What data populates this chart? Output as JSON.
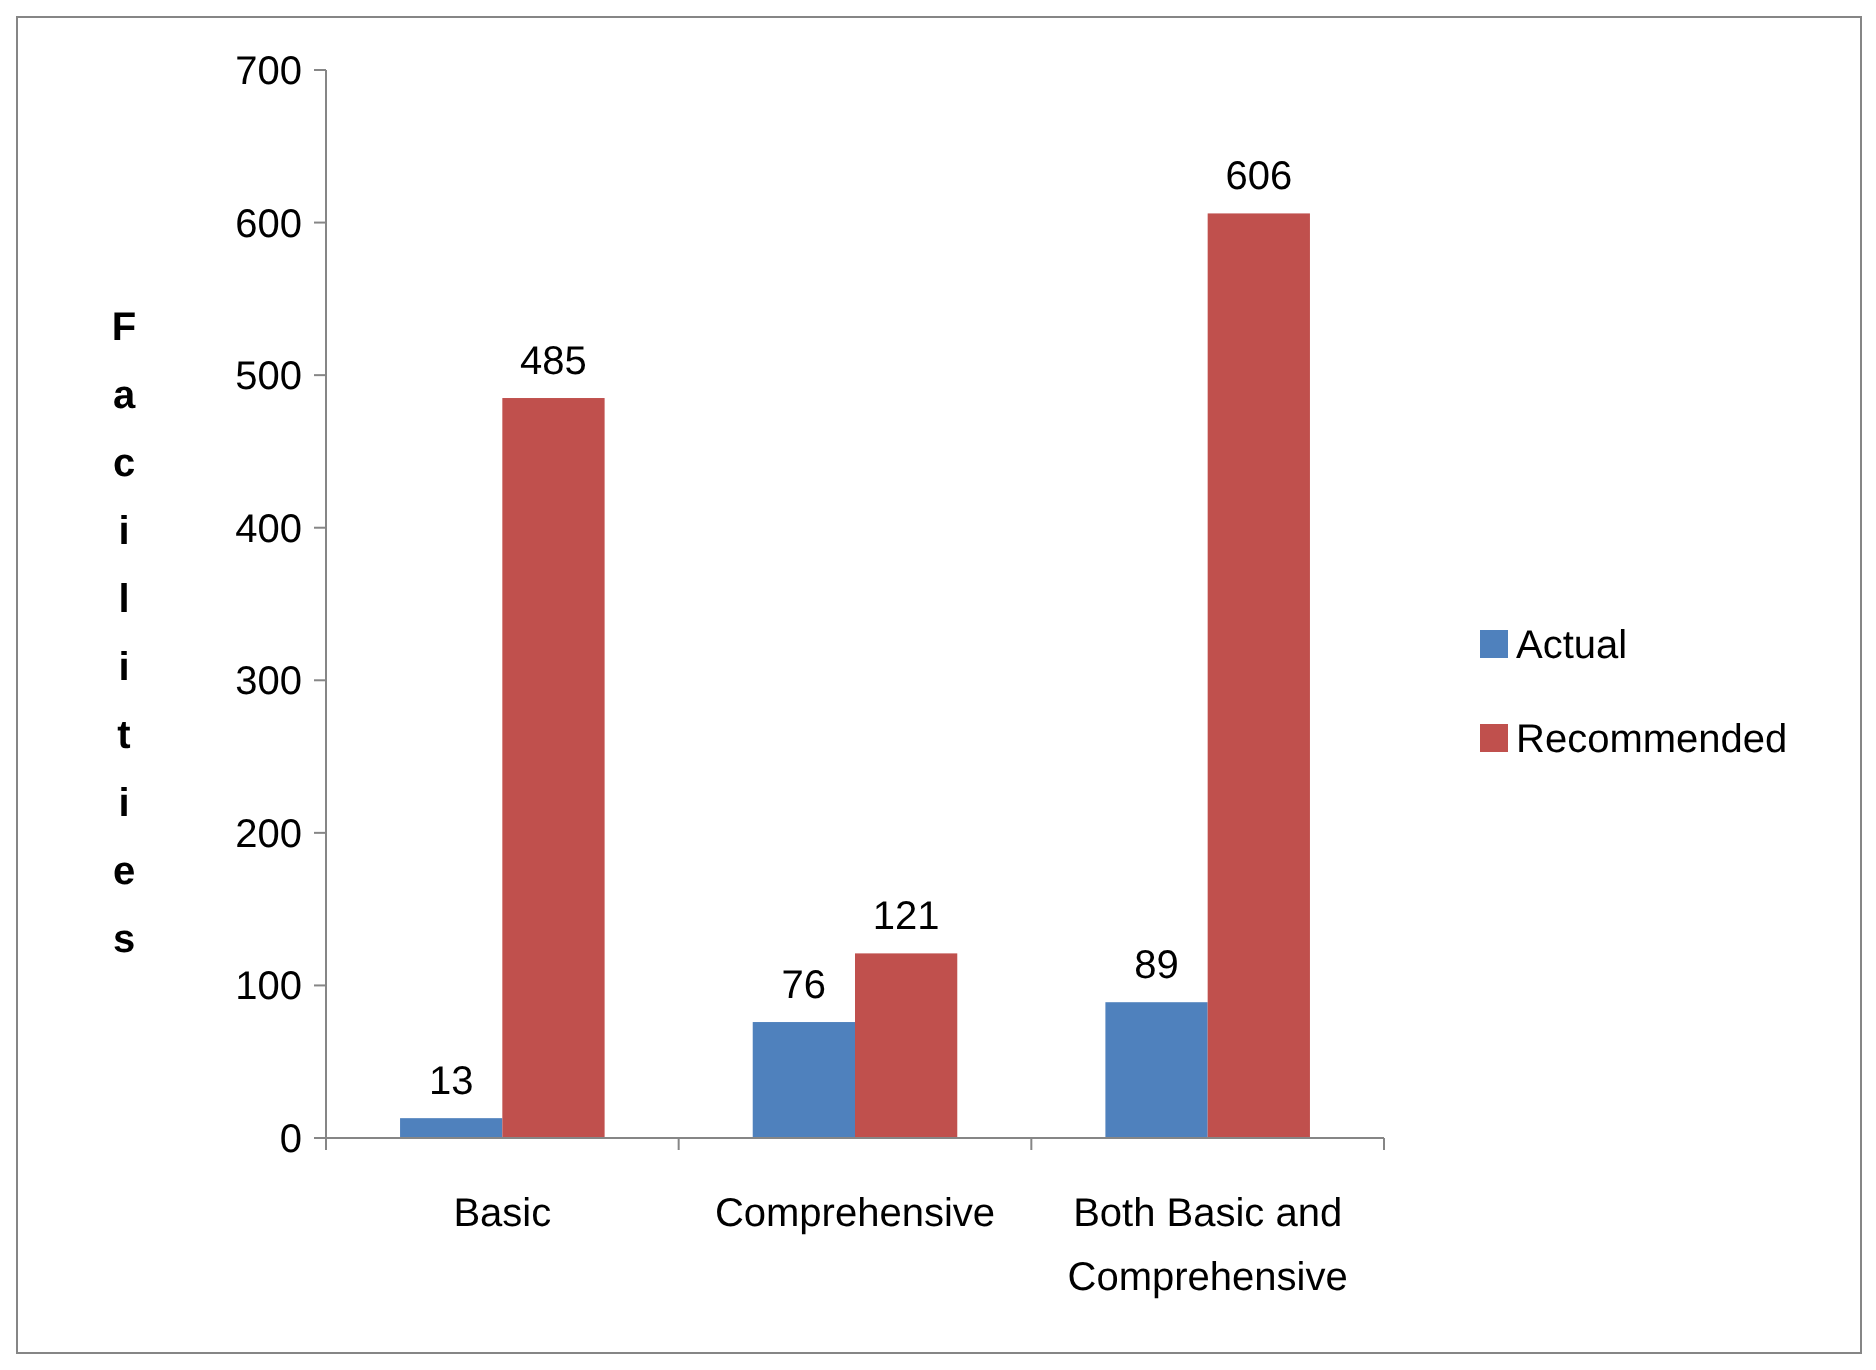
{
  "chart_data": {
    "type": "bar",
    "ylabel": "Facilities",
    "categories": [
      "Basic",
      "Comprehensive",
      "Both Basic and Comprehensive"
    ],
    "series": [
      {
        "name": "Actual",
        "color": "#4f81bd",
        "values": [
          13,
          76,
          89
        ]
      },
      {
        "name": "Recommended",
        "color": "#c0504d",
        "values": [
          485,
          121,
          606
        ]
      }
    ],
    "ylim": [
      0,
      700
    ],
    "yticks": [
      0,
      100,
      200,
      300,
      400,
      500,
      600,
      700
    ],
    "data_labels": true,
    "grid": false,
    "legend": "right"
  }
}
